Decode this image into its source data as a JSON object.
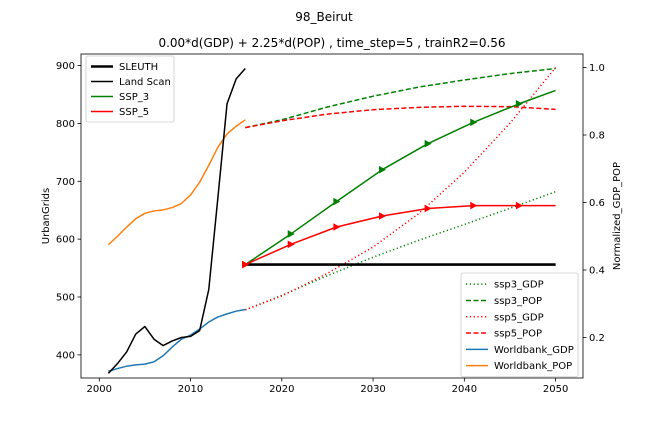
{
  "chart_data": {
    "type": "line",
    "suptitle": "98_Beirut",
    "title": "0.00*d(GDP) + 2.25*d(POP) , time_step=5 , trainR2=0.56",
    "xlabel": "",
    "ylabel_left": "UrbanGrids",
    "ylabel_right": "Normalized_GDP_POP",
    "xlim": [
      1998,
      2053
    ],
    "ylim_left": [
      360,
      920
    ],
    "ylim_right": [
      0.08,
      1.04
    ],
    "xticks": [
      2000,
      2010,
      2020,
      2030,
      2040,
      2050
    ],
    "yticks_left": [
      400,
      500,
      600,
      700,
      800,
      900
    ],
    "yticks_right": [
      0.2,
      0.4,
      0.6,
      0.8,
      1.0
    ],
    "ytick_labels_right": [
      "0.2",
      "0.4",
      "0.6",
      "0.8",
      "1.0"
    ],
    "legend_left": {
      "placement": "upper-left",
      "entries": [
        {
          "label": "SLEUTH",
          "color": "#000000",
          "style": "solid-thick"
        },
        {
          "label": "Land Scan",
          "color": "#000000",
          "style": "solid"
        },
        {
          "label": "SSP_3",
          "color": "#008000",
          "style": "solid"
        },
        {
          "label": "SSP_5",
          "color": "#ff0000",
          "style": "solid"
        }
      ]
    },
    "legend_right": {
      "placement": "lower-right",
      "entries": [
        {
          "label": "ssp3_GDP",
          "color": "#008000",
          "style": "dotted"
        },
        {
          "label": "ssp3_POP",
          "color": "#008000",
          "style": "dashed"
        },
        {
          "label": "ssp5_GDP",
          "color": "#ff0000",
          "style": "dotted"
        },
        {
          "label": "ssp5_POP",
          "color": "#ff0000",
          "style": "dashed"
        },
        {
          "label": "Worldbank_GDP",
          "color": "#1f77b4",
          "style": "solid"
        },
        {
          "label": "Worldbank_POP",
          "color": "#ff7f0e",
          "style": "solid"
        }
      ]
    },
    "series_left": [
      {
        "name": "SLEUTH",
        "color": "#000000",
        "style": "solid-thick",
        "x": [
          2016,
          2050
        ],
        "y": [
          556,
          556
        ]
      },
      {
        "name": "Land Scan",
        "color": "#000000",
        "style": "solid",
        "x": [
          2001,
          2002,
          2003,
          2004,
          2005,
          2006,
          2007,
          2008,
          2009,
          2010,
          2011,
          2012,
          2013,
          2014,
          2015,
          2016
        ],
        "y": [
          368,
          385,
          405,
          436,
          449,
          427,
          416,
          424,
          430,
          432,
          442,
          513,
          672,
          834,
          877,
          895
        ]
      },
      {
        "name": "SSP_3",
        "color": "#008000",
        "style": "solid",
        "markers": true,
        "x": [
          2016,
          2021,
          2026,
          2031,
          2036,
          2041,
          2046,
          2050
        ],
        "y": [
          556,
          609,
          665,
          720,
          765,
          802,
          834,
          857
        ]
      },
      {
        "name": "SSP_5",
        "color": "#ff0000",
        "style": "solid",
        "markers": true,
        "x": [
          2016,
          2021,
          2026,
          2031,
          2036,
          2041,
          2046,
          2050
        ],
        "y": [
          556,
          591,
          621,
          640,
          653,
          658,
          658,
          658
        ]
      }
    ],
    "series_right": [
      {
        "name": "ssp3_GDP",
        "color": "#008000",
        "style": "dotted",
        "x": [
          2016,
          2020,
          2025,
          2030,
          2035,
          2040,
          2045,
          2050
        ],
        "y": [
          0.282,
          0.325,
          0.383,
          0.438,
          0.488,
          0.535,
          0.583,
          0.632
        ]
      },
      {
        "name": "ssp3_POP",
        "color": "#008000",
        "style": "dashed",
        "x": [
          2016,
          2020,
          2025,
          2030,
          2035,
          2040,
          2045,
          2050
        ],
        "y": [
          0.822,
          0.845,
          0.883,
          0.915,
          0.942,
          0.963,
          0.982,
          0.997
        ]
      },
      {
        "name": "ssp5_GDP",
        "color": "#ff0000",
        "style": "dotted",
        "x": [
          2016,
          2020,
          2025,
          2030,
          2035,
          2040,
          2045,
          2050
        ],
        "y": [
          0.282,
          0.323,
          0.39,
          0.468,
          0.567,
          0.69,
          0.835,
          1.0
        ]
      },
      {
        "name": "ssp5_POP",
        "color": "#ff0000",
        "style": "dashed",
        "x": [
          2016,
          2020,
          2025,
          2030,
          2035,
          2040,
          2045,
          2050
        ],
        "y": [
          0.822,
          0.842,
          0.862,
          0.875,
          0.882,
          0.885,
          0.884,
          0.876
        ]
      },
      {
        "name": "Worldbank_GDP",
        "color": "#1f77b4",
        "style": "solid",
        "x": [
          2001,
          2002,
          2003,
          2004,
          2005,
          2006,
          2007,
          2008,
          2009,
          2010,
          2011,
          2012,
          2013,
          2014,
          2015,
          2016
        ],
        "y": [
          0.1,
          0.108,
          0.115,
          0.119,
          0.121,
          0.128,
          0.146,
          0.172,
          0.195,
          0.207,
          0.225,
          0.246,
          0.261,
          0.27,
          0.278,
          0.283
        ]
      },
      {
        "name": "Worldbank_POP",
        "color": "#ff7f0e",
        "style": "solid",
        "x": [
          2001,
          2002,
          2003,
          2004,
          2005,
          2006,
          2007,
          2008,
          2009,
          2010,
          2011,
          2012,
          2013,
          2014,
          2015,
          2016
        ],
        "y": [
          0.475,
          0.5,
          0.527,
          0.552,
          0.568,
          0.575,
          0.578,
          0.585,
          0.597,
          0.622,
          0.66,
          0.71,
          0.764,
          0.803,
          0.826,
          0.845
        ]
      }
    ]
  }
}
